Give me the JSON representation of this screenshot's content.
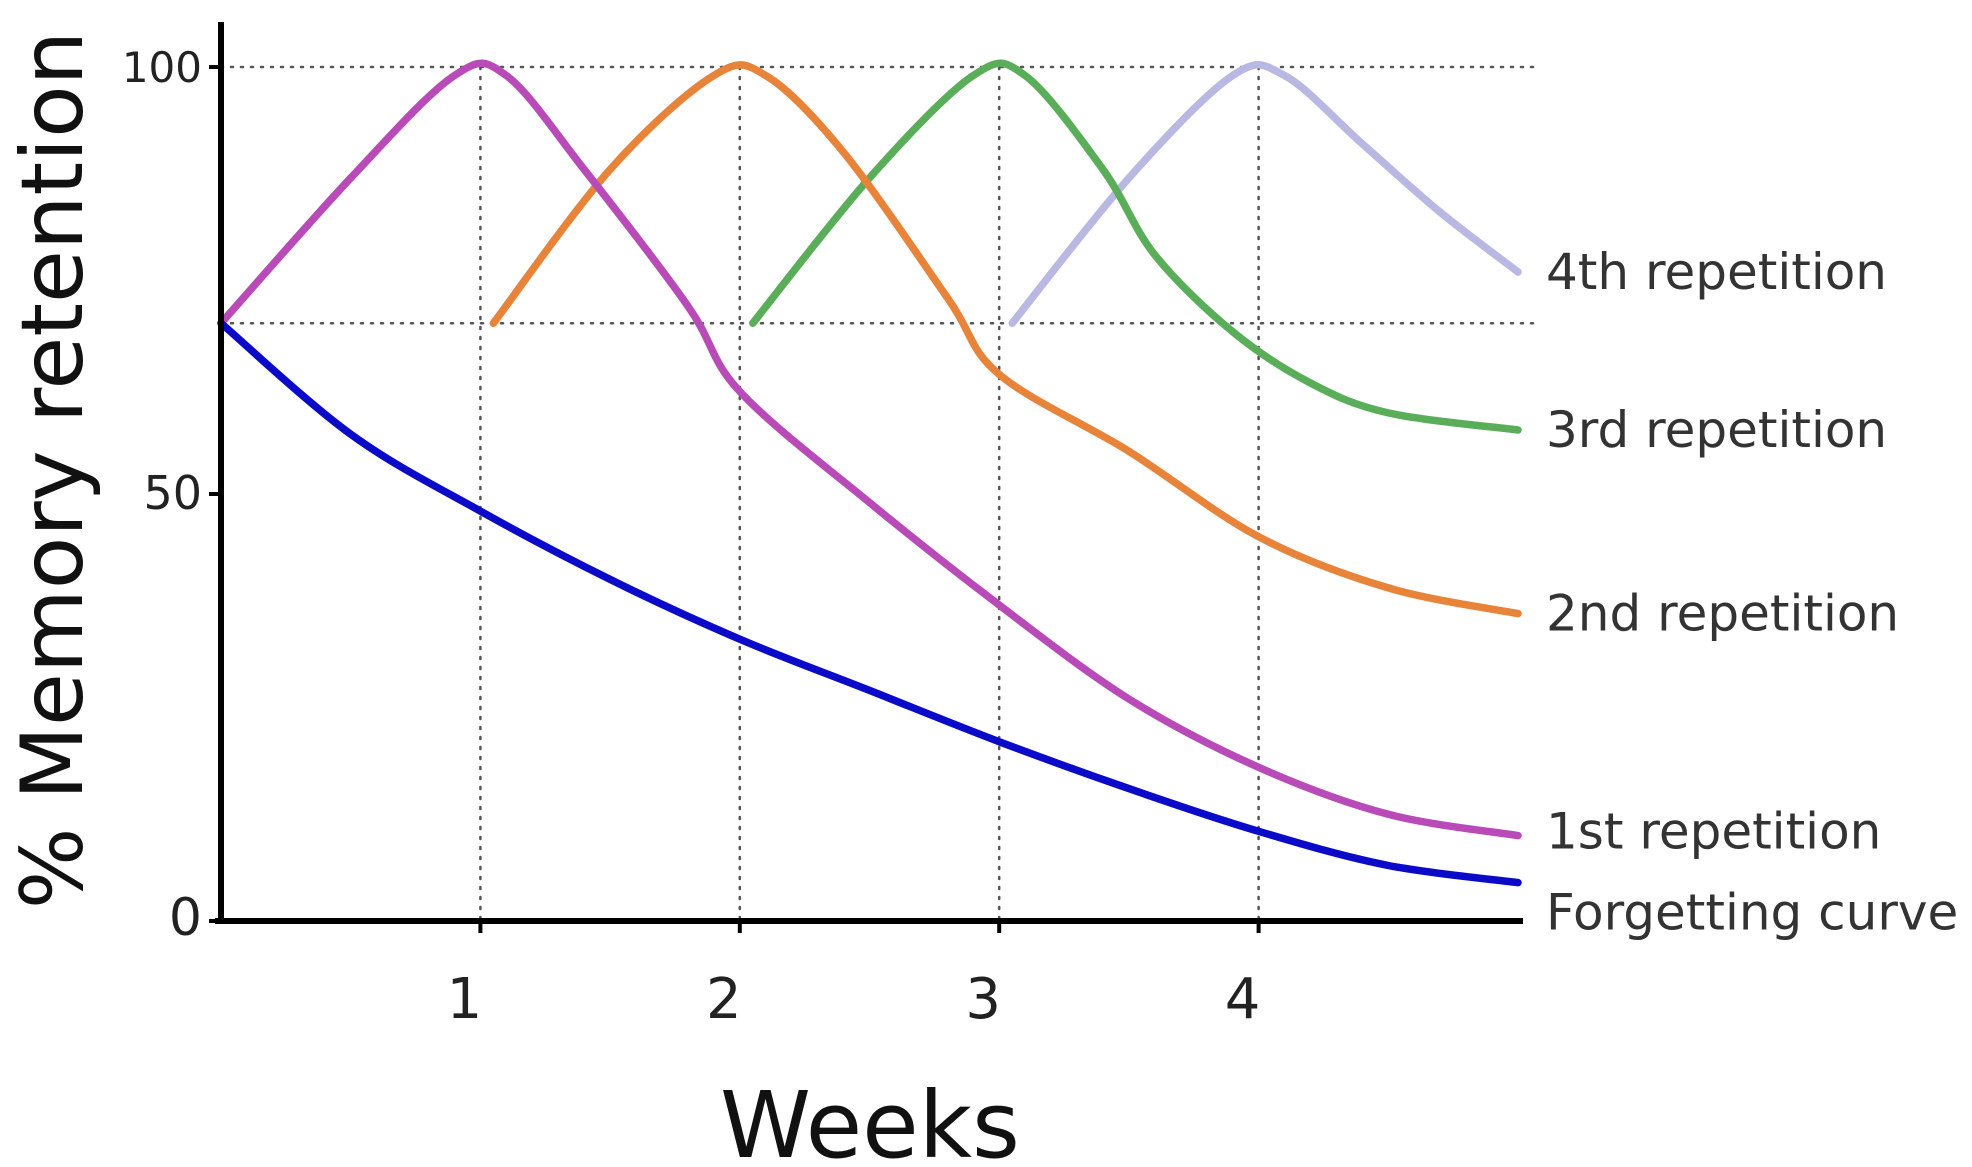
{
  "chart_data": {
    "type": "line",
    "title": "",
    "xlabel": "Weeks",
    "ylabel": "% Memory retention",
    "xlim": [
      0,
      5
    ],
    "ylim": [
      0,
      100
    ],
    "x_ticks": [
      {
        "value": 1,
        "label": "1"
      },
      {
        "value": 2,
        "label": "2"
      },
      {
        "value": 3,
        "label": "3"
      },
      {
        "value": 4,
        "label": "4"
      }
    ],
    "y_ticks": [
      {
        "value": 0,
        "label": "0"
      },
      {
        "value": 50,
        "label": "50"
      },
      {
        "value": 100,
        "label": "100"
      }
    ],
    "reference_lines": {
      "horizontal": [
        100,
        70
      ],
      "vertical": [
        1,
        2,
        3,
        4
      ],
      "style": "dotted"
    },
    "grid": false,
    "legend": "none; series labelled at right end of each line",
    "series": [
      {
        "name": "Forgetting curve",
        "color": "#0a0ac8",
        "points": [
          [
            0,
            70
          ],
          [
            0.5,
            57
          ],
          [
            1,
            48
          ],
          [
            1.5,
            40
          ],
          [
            2,
            33
          ],
          [
            2.5,
            27
          ],
          [
            3,
            21
          ],
          [
            3.5,
            15.5
          ],
          [
            4,
            10.5
          ],
          [
            4.5,
            6.5
          ],
          [
            5,
            4.5
          ]
        ]
      },
      {
        "name": "1st repetition",
        "color": "#b84bb8",
        "points": [
          [
            0,
            70
          ],
          [
            0.5,
            87
          ],
          [
            0.9,
            99
          ],
          [
            1.1,
            99
          ],
          [
            1.4,
            88
          ],
          [
            1.8,
            72
          ],
          [
            2,
            62
          ],
          [
            2.5,
            49
          ],
          [
            3,
            37
          ],
          [
            3.5,
            26
          ],
          [
            4,
            18
          ],
          [
            4.5,
            12.5
          ],
          [
            5,
            10
          ]
        ]
      },
      {
        "name": "2nd repetition",
        "color": "#e8843a",
        "points": [
          [
            1.05,
            70
          ],
          [
            1.5,
            88
          ],
          [
            1.9,
            99
          ],
          [
            2.1,
            99
          ],
          [
            2.4,
            90
          ],
          [
            2.8,
            73
          ],
          [
            3,
            64
          ],
          [
            3.5,
            55
          ],
          [
            4,
            45
          ],
          [
            4.5,
            39
          ],
          [
            5,
            36
          ]
        ]
      },
      {
        "name": "3rd repetition",
        "color": "#5aae5a",
        "points": [
          [
            2.05,
            70
          ],
          [
            2.5,
            87
          ],
          [
            2.9,
            99
          ],
          [
            3.1,
            99
          ],
          [
            3.4,
            88
          ],
          [
            3.6,
            78
          ],
          [
            3.9,
            69
          ],
          [
            4.2,
            63
          ],
          [
            4.5,
            59.5
          ],
          [
            5,
            57.5
          ]
        ]
      },
      {
        "name": "4th repetition",
        "color": "#b8b8e2",
        "points": [
          [
            3.05,
            70
          ],
          [
            3.5,
            87
          ],
          [
            3.9,
            99
          ],
          [
            4.1,
            99
          ],
          [
            4.4,
            91
          ],
          [
            4.7,
            83
          ],
          [
            5,
            76
          ]
        ]
      }
    ],
    "series_labels": [
      {
        "text": "4th repetition",
        "y": 76
      },
      {
        "text": "3rd repetition",
        "y": 57.5
      },
      {
        "text": "2nd repetition",
        "y": 36
      },
      {
        "text": "1st repetition",
        "y": 10.5
      },
      {
        "text": "Forgetting curve",
        "y": 1
      }
    ]
  }
}
